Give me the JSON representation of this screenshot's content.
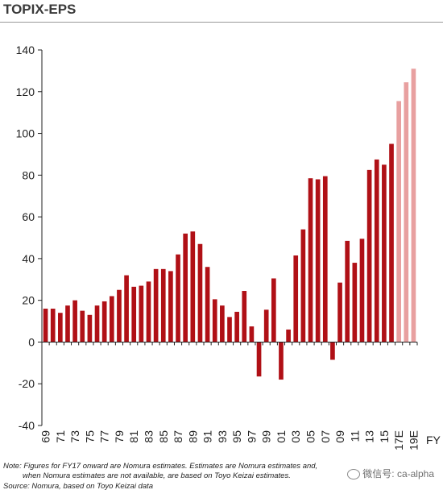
{
  "title": "TOPIX-EPS",
  "footnotes": {
    "note_line1": "Note: Figures for FY17 onward are Nomura estimates. Estimates are Nomura estimates and,",
    "note_line2": "when Nomura estimates are not available, are based on Toyo Keizai estimates.",
    "source": "Source: Nomura, based on Toyo Keizai data"
  },
  "watermark": {
    "icon": "wechat-icon",
    "text": "微信号: ca-alpha"
  },
  "colors": {
    "actual": "#b01016",
    "estimate": "#e8a0a0",
    "axis": "#222222"
  },
  "chart_data": {
    "type": "bar",
    "title": "TOPIX-EPS",
    "xlabel": "FY",
    "ylabel": "",
    "ylim": [
      -40,
      140
    ],
    "yticks": [
      -40,
      -20,
      0,
      20,
      40,
      60,
      80,
      100,
      120,
      140
    ],
    "grid": false,
    "legend": "none",
    "categories": [
      "69",
      "70",
      "71",
      "72",
      "73",
      "74",
      "75",
      "76",
      "77",
      "78",
      "79",
      "80",
      "81",
      "82",
      "83",
      "84",
      "85",
      "86",
      "87",
      "88",
      "89",
      "90",
      "91",
      "92",
      "93",
      "94",
      "95",
      "96",
      "97",
      "98",
      "99",
      "00",
      "01",
      "02",
      "03",
      "04",
      "05",
      "06",
      "07",
      "08",
      "09",
      "10",
      "11",
      "12",
      "13",
      "14",
      "15",
      "16",
      "17E",
      "18E",
      "19E"
    ],
    "x_tick_labels": [
      "69",
      "71",
      "73",
      "75",
      "77",
      "79",
      "81",
      "83",
      "85",
      "87",
      "89",
      "91",
      "93",
      "95",
      "97",
      "99",
      "01",
      "03",
      "05",
      "07",
      "09",
      "11",
      "13",
      "15",
      "17E",
      "19E"
    ],
    "values": [
      16,
      16,
      14,
      17.5,
      20,
      15,
      13,
      17.5,
      19.5,
      22,
      25,
      32,
      26.5,
      27,
      29,
      35,
      35,
      34,
      42,
      52,
      53,
      47,
      36,
      20.5,
      17.5,
      12,
      14.5,
      24.5,
      7.5,
      -16.5,
      15.5,
      30.5,
      -18,
      6,
      41.5,
      54,
      78.5,
      78,
      79.5,
      -8.5,
      28.5,
      48.5,
      38,
      49.5,
      82.5,
      87.5,
      85,
      95,
      115.5,
      124.5,
      131
    ],
    "estimate_from": "17E"
  }
}
